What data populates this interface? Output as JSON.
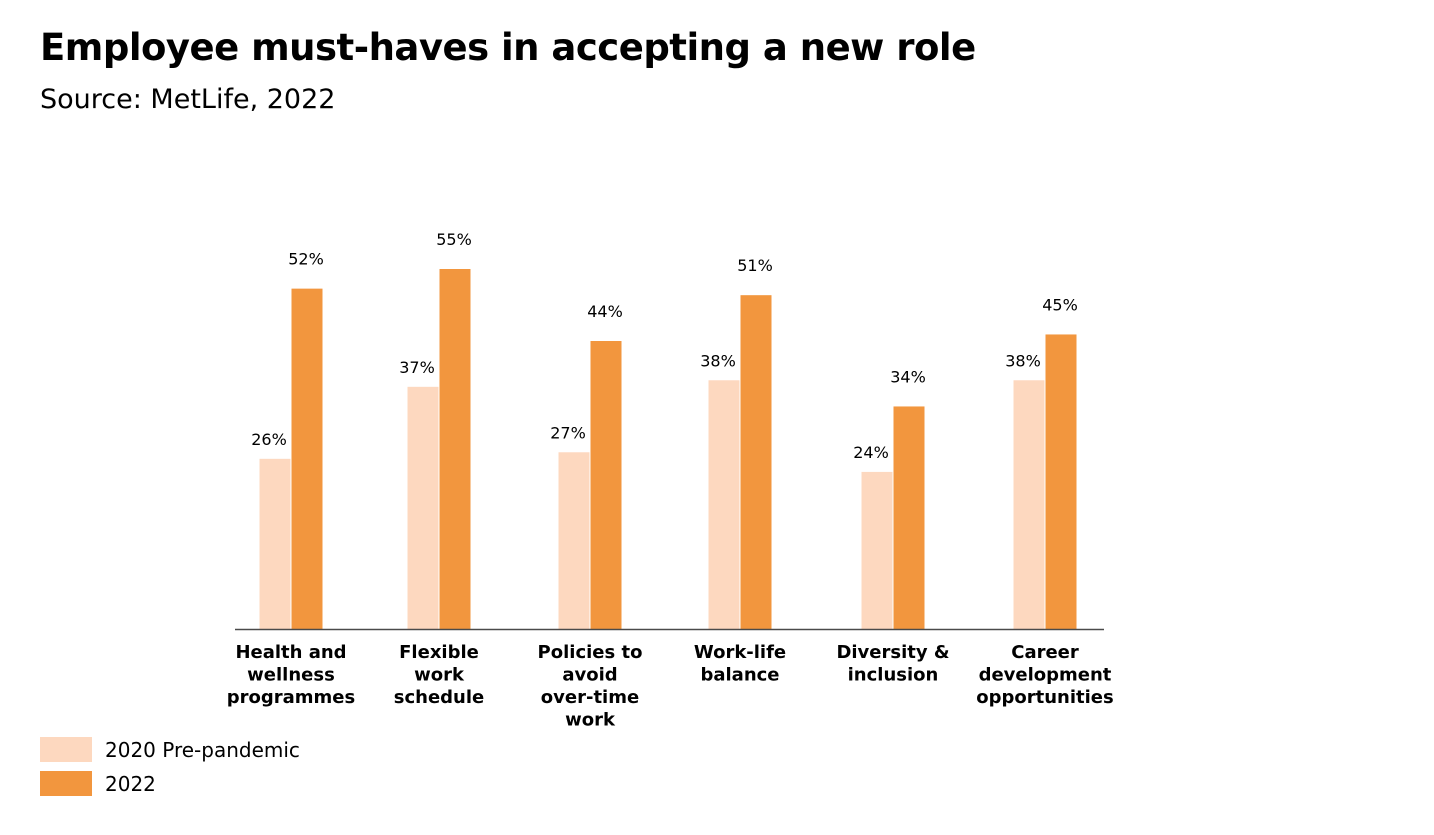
{
  "header": {
    "title": "Employee must-haves in accepting a new role",
    "subtitle": "Source: MetLife, 2022"
  },
  "colors": {
    "prepandemic": "#FDD8BF",
    "current": "#F2963E",
    "axis": "#4a4a4a",
    "text": "#000000"
  },
  "chart_data": {
    "type": "bar",
    "categories": [
      "Health and wellness programmes",
      "Flexible work schedule",
      "Policies to avoid over-time work",
      "Work-life balance",
      "Diversity & inclusion",
      "Career development opportunities"
    ],
    "category_lines": [
      [
        "Health and",
        "wellness",
        "programmes"
      ],
      [
        "Flexible",
        "work",
        "schedule"
      ],
      [
        "Policies to",
        "avoid",
        "over-time",
        "work"
      ],
      [
        "Work-life",
        "balance"
      ],
      [
        "Diversity &",
        "inclusion"
      ],
      [
        "Career",
        "development",
        "opportunities"
      ]
    ],
    "series": [
      {
        "name": "2020 Pre-pandemic",
        "values": [
          26,
          37,
          27,
          38,
          24,
          38
        ],
        "labels": [
          "26%",
          "37%",
          "27%",
          "38%",
          "24%",
          "38%"
        ]
      },
      {
        "name": "2022",
        "values": [
          52,
          55,
          44,
          51,
          34,
          45
        ],
        "labels": [
          "52%",
          "55%",
          "44%",
          "51%",
          "34%",
          "45%"
        ]
      }
    ],
    "ylim": [
      0,
      60
    ],
    "grid": false,
    "legend_position": "bottom-left"
  },
  "legend": {
    "items": [
      {
        "label": "2020 Pre-pandemic"
      },
      {
        "label": "2022"
      }
    ]
  }
}
